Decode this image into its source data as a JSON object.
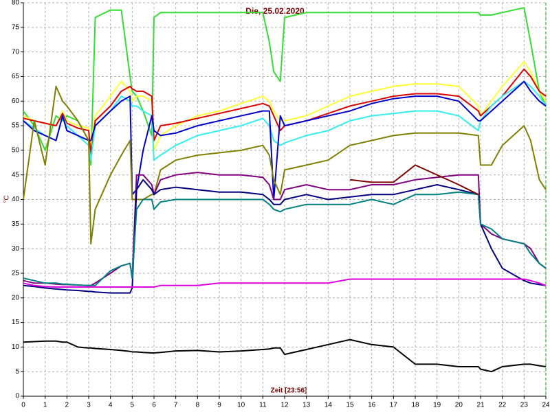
{
  "chart_data": {
    "type": "line",
    "title": "Die, 25.02.2020",
    "x_label": "Zeit [23:56]",
    "y_label": "°C",
    "x": [
      0,
      0.5,
      1,
      1.5,
      1.8,
      2,
      2.5,
      3,
      3.1,
      3.3,
      4,
      4.5,
      4.9,
      5,
      5.2,
      5.5,
      5.9,
      6,
      6.3,
      7,
      8,
      9,
      10,
      11,
      11.3,
      11.5,
      11.8,
      12,
      13,
      14,
      15,
      16,
      17,
      18,
      19,
      20,
      20.9,
      21,
      21.5,
      22,
      23,
      23.3,
      23.7,
      24
    ],
    "xlim": [
      0,
      24
    ],
    "xticks": [
      0,
      1,
      2,
      3,
      4,
      5,
      6,
      7,
      8,
      9,
      10,
      11,
      12,
      13,
      14,
      15,
      16,
      17,
      18,
      19,
      20,
      21,
      22,
      23,
      24
    ],
    "ylim": [
      0,
      80
    ],
    "yticks": [
      0,
      5,
      10,
      15,
      20,
      25,
      30,
      35,
      40,
      45,
      50,
      55,
      60,
      65,
      70,
      75,
      80
    ],
    "grid": true,
    "series": [
      {
        "color": "#33dd33",
        "values": [
          58,
          55,
          50,
          57,
          56,
          57,
          56,
          52,
          47,
          77,
          78.5,
          78.5,
          65,
          62,
          61,
          58,
          53,
          77,
          78,
          78,
          78,
          78,
          78,
          78,
          72,
          66,
          64,
          77,
          78,
          78,
          78,
          78,
          78,
          78,
          78,
          78,
          78,
          77.5,
          77.5,
          78,
          79,
          72,
          62,
          59
        ]
      },
      {
        "color": "#ffff33",
        "values": [
          57,
          56,
          55.5,
          55,
          58,
          56,
          55,
          54.5,
          51,
          57,
          61,
          64,
          62,
          60,
          61,
          61,
          60,
          50,
          53,
          55,
          57,
          58,
          59.5,
          61,
          60,
          58,
          56,
          56,
          57,
          59,
          61,
          62,
          63,
          63.5,
          63.5,
          63,
          59,
          57,
          60,
          63,
          68,
          66,
          62,
          60
        ]
      },
      {
        "color": "#dd0000",
        "values": [
          56.5,
          56,
          55.5,
          55,
          57.5,
          55.5,
          54.5,
          54,
          49,
          56,
          59,
          62,
          63,
          62.5,
          62,
          62,
          61,
          52,
          55,
          55.5,
          56.5,
          57.5,
          58.5,
          59.5,
          59,
          57,
          54,
          55,
          56,
          57.5,
          59,
          60,
          61,
          61.5,
          61.5,
          61,
          58,
          57,
          59,
          61,
          66.5,
          65,
          62,
          61
        ]
      },
      {
        "color": "#33eeee",
        "values": [
          56,
          54.5,
          53,
          52,
          57,
          55,
          53,
          51,
          48,
          55,
          58,
          61,
          60,
          59,
          59,
          58,
          57,
          48,
          49,
          51,
          53,
          54,
          55,
          56.5,
          55,
          52,
          51,
          51.5,
          53,
          54,
          56,
          57,
          57.5,
          58,
          58,
          57,
          54,
          56,
          59,
          61,
          64,
          63,
          61,
          59
        ]
      },
      {
        "color": "#0000cc",
        "values": [
          56,
          54,
          53,
          52,
          57,
          54,
          53,
          52,
          52,
          55,
          58,
          60,
          61,
          41,
          42,
          50,
          57,
          54,
          53,
          53.5,
          55,
          56,
          57,
          58,
          58,
          40,
          57,
          55,
          56,
          57,
          58,
          59.5,
          60.5,
          61,
          61,
          60,
          56,
          56,
          58,
          60,
          64,
          62,
          60,
          59
        ]
      },
      {
        "color": "#808000",
        "values": [
          40,
          56,
          47,
          63,
          60,
          59,
          56,
          52,
          31,
          38,
          45,
          49,
          52,
          40,
          40,
          40,
          41,
          41,
          46,
          48,
          49,
          49.5,
          50,
          51,
          49,
          44,
          41,
          46,
          47,
          48,
          51,
          52,
          53,
          53.5,
          53.5,
          53.5,
          53,
          47,
          47,
          51,
          55,
          52,
          44,
          42
        ]
      },
      {
        "color": "#800080",
        "values": [
          23.5,
          23,
          23,
          22.8,
          22.7,
          22.7,
          22.6,
          22.5,
          22.5,
          23,
          25,
          26.5,
          27,
          24,
          45,
          45,
          43,
          41,
          44,
          45,
          45.5,
          45,
          45,
          44.5,
          43,
          40,
          40,
          42,
          43,
          42,
          42,
          43,
          43,
          44,
          44.5,
          45,
          45,
          35,
          33,
          32,
          31,
          30,
          27,
          26
        ]
      },
      {
        "color": "#000080",
        "values": [
          22.5,
          22.3,
          22,
          21.8,
          21.7,
          21.6,
          21.5,
          21.3,
          21.3,
          21.2,
          21,
          21,
          21,
          22,
          42,
          44,
          42,
          41,
          42,
          42.5,
          42,
          41.5,
          41.5,
          41,
          40,
          39,
          39,
          40,
          41,
          40,
          40.5,
          41,
          41,
          42,
          43,
          42,
          41,
          35,
          30,
          26,
          23.5,
          23,
          22.7,
          22.5
        ]
      },
      {
        "color": "#008080",
        "values": [
          24,
          23.5,
          23,
          23,
          22.8,
          22.8,
          22.6,
          22.5,
          22.5,
          22.5,
          25.5,
          26.5,
          27,
          24,
          38,
          40,
          40,
          38,
          39.5,
          40,
          40,
          40,
          40,
          40,
          39,
          38,
          37.5,
          38,
          39,
          39,
          39,
          40,
          39,
          41,
          41,
          41.5,
          41,
          35,
          34,
          32,
          31,
          29,
          27,
          26
        ]
      },
      {
        "color": "#800000",
        "values": [
          null,
          null,
          null,
          null,
          null,
          null,
          null,
          null,
          null,
          null,
          null,
          null,
          null,
          null,
          null,
          null,
          null,
          null,
          null,
          null,
          null,
          null,
          null,
          null,
          null,
          null,
          null,
          null,
          null,
          null,
          44,
          43.5,
          43.5,
          47,
          45,
          43,
          41,
          null,
          null,
          null,
          null,
          null,
          null,
          null
        ]
      },
      {
        "color": "#dd00dd",
        "values": [
          23,
          22.5,
          22.3,
          22.2,
          22.2,
          22.2,
          22.2,
          22.2,
          22.2,
          22.2,
          22.2,
          22.2,
          22.2,
          22.2,
          22.2,
          22.2,
          22.2,
          22.2,
          22.5,
          22.5,
          22.5,
          23,
          23,
          23,
          23,
          23,
          23,
          23,
          23,
          23,
          23.8,
          23.8,
          23.8,
          23.8,
          23.8,
          23.8,
          23.8,
          23.8,
          23.8,
          23.8,
          23.8,
          23.5,
          23,
          22.5
        ]
      },
      {
        "color": "#000000",
        "values": [
          11,
          11.1,
          11.2,
          11.2,
          11,
          11,
          10,
          9.8,
          9.8,
          9.7,
          9.5,
          9.3,
          9.1,
          9,
          9,
          8.9,
          8.8,
          8.8,
          8.9,
          9.2,
          9.3,
          9,
          9.2,
          9.5,
          9.6,
          9.8,
          9.8,
          8.5,
          9.5,
          10.5,
          11.5,
          10.5,
          10,
          6.5,
          6.5,
          6,
          6,
          5.5,
          5,
          6,
          6.5,
          6.5,
          6.2,
          6
        ]
      }
    ]
  }
}
